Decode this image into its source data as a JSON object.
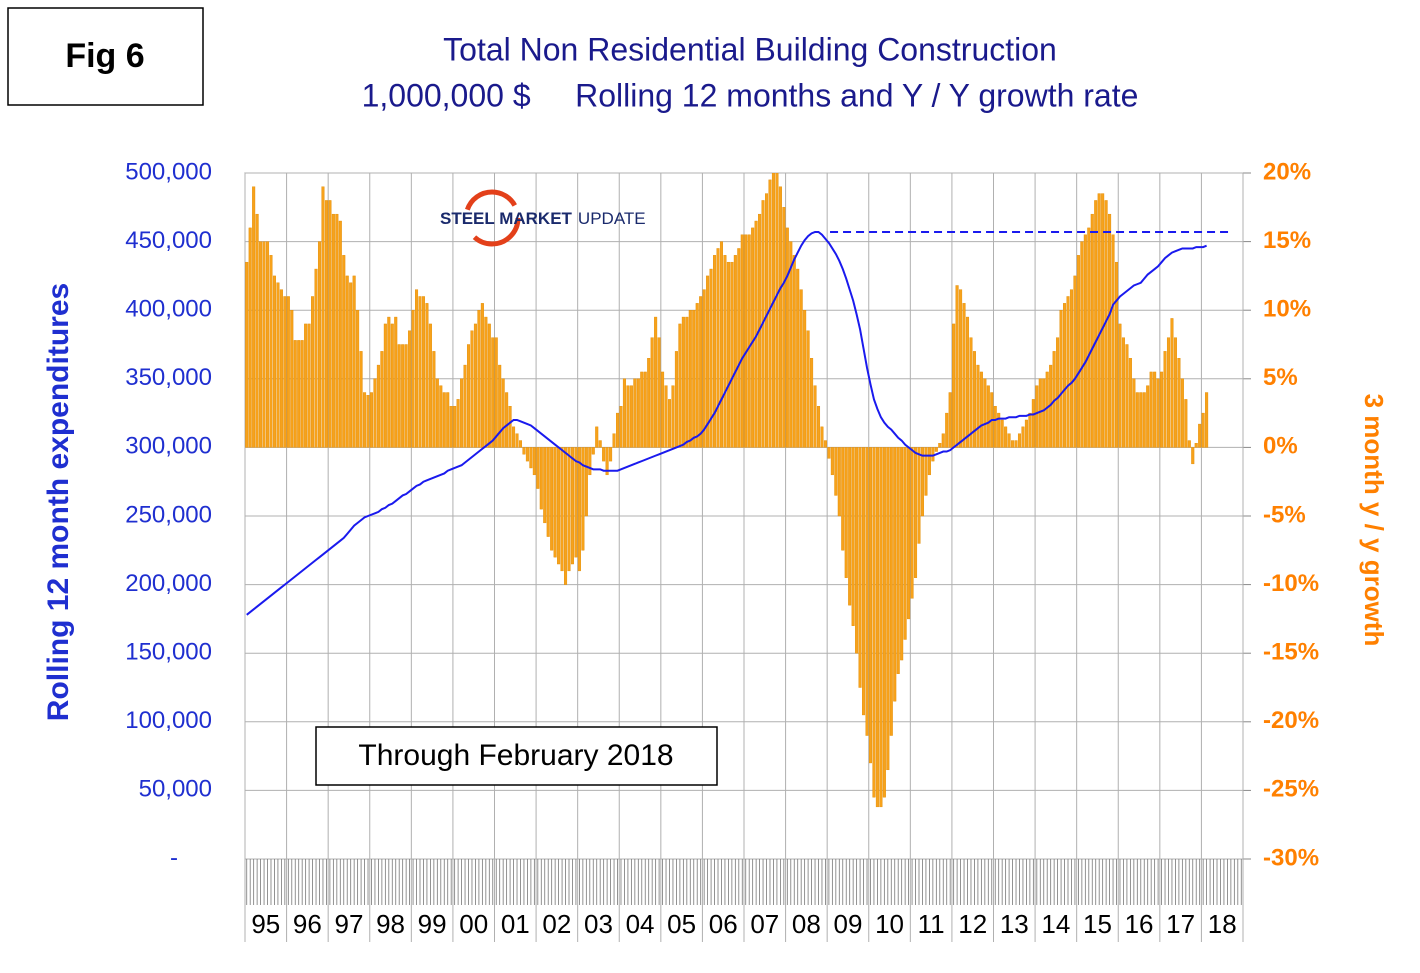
{
  "fig_label": "Fig 6",
  "logo": {
    "bold": "STEEL MARKET",
    "light": "UPDATE"
  },
  "chart_data": {
    "type": "bar_line",
    "title": [
      "Total Non Residential Building Construction",
      "1,000,000 $     Rolling 12 months and Y / Y growth rate"
    ],
    "ylabel": "Rolling 12 month expenditures",
    "y2label": "3 month y / y growth",
    "annotation": "Through February 2018",
    "categories": [
      "95",
      null,
      null,
      null,
      null,
      null,
      null,
      null,
      null,
      null,
      null,
      null,
      "96",
      null,
      null,
      null,
      null,
      null,
      null,
      null,
      null,
      null,
      null,
      null,
      "97",
      null,
      null,
      null,
      null,
      null,
      null,
      null,
      null,
      null,
      null,
      null,
      "98",
      null,
      null,
      null,
      null,
      null,
      null,
      null,
      null,
      null,
      null,
      null,
      "99",
      null,
      null,
      null,
      null,
      null,
      null,
      null,
      null,
      null,
      null,
      null,
      "00",
      null,
      null,
      null,
      null,
      null,
      null,
      null,
      null,
      null,
      null,
      null,
      "01",
      null,
      null,
      null,
      null,
      null,
      null,
      null,
      null,
      null,
      null,
      null,
      "02",
      null,
      null,
      null,
      null,
      null,
      null,
      null,
      null,
      null,
      null,
      null,
      "03",
      null,
      null,
      null,
      null,
      null,
      null,
      null,
      null,
      null,
      null,
      null,
      "04",
      null,
      null,
      null,
      null,
      null,
      null,
      null,
      null,
      null,
      null,
      null,
      "05",
      null,
      null,
      null,
      null,
      null,
      null,
      null,
      null,
      null,
      null,
      null,
      "06",
      null,
      null,
      null,
      null,
      null,
      null,
      null,
      null,
      null,
      null,
      null,
      "07",
      null,
      null,
      null,
      null,
      null,
      null,
      null,
      null,
      null,
      null,
      null,
      "08",
      null,
      null,
      null,
      null,
      null,
      null,
      null,
      null,
      null,
      null,
      null,
      "09",
      null,
      null,
      null,
      null,
      null,
      null,
      null,
      null,
      null,
      null,
      null,
      "10",
      null,
      null,
      null,
      null,
      null,
      null,
      null,
      null,
      null,
      null,
      null,
      "11",
      null,
      null,
      null,
      null,
      null,
      null,
      null,
      null,
      null,
      null,
      null,
      "12",
      null,
      null,
      null,
      null,
      null,
      null,
      null,
      null,
      null,
      null,
      null,
      "13",
      null,
      null,
      null,
      null,
      null,
      null,
      null,
      null,
      null,
      null,
      null,
      "14",
      null,
      null,
      null,
      null,
      null,
      null,
      null,
      null,
      null,
      null,
      null,
      "15",
      null,
      null,
      null,
      null,
      null,
      null,
      null,
      null,
      null,
      null,
      null,
      "16",
      null,
      null,
      null,
      null,
      null,
      null,
      null,
      null,
      null,
      null,
      null,
      "17",
      null,
      null,
      null,
      null,
      null,
      null,
      null,
      null,
      null,
      null,
      null,
      "18",
      null
    ],
    "series": [
      {
        "kind": "bar",
        "axis": "y2",
        "color": "#f7a21b",
        "values": [
          13.5,
          16,
          19,
          17,
          15,
          15,
          15,
          14,
          12.5,
          12,
          11.5,
          11,
          11,
          10,
          7.8,
          7.8,
          7.8,
          9,
          9,
          11,
          13,
          15,
          19,
          18,
          18,
          17,
          17,
          16.5,
          14,
          12.5,
          12,
          12.5,
          10,
          7,
          4,
          3.8,
          4,
          5,
          6,
          7,
          9,
          9.5,
          9,
          9.5,
          7.5,
          7.5,
          7.5,
          8.5,
          10,
          11.5,
          11,
          11,
          10.5,
          9,
          7,
          5,
          4.5,
          4,
          4,
          3,
          3,
          3.5,
          5,
          6,
          7.5,
          8.5,
          9,
          10,
          10.5,
          9.5,
          9,
          8,
          8,
          6,
          5,
          4,
          3,
          1.5,
          1,
          0.5,
          -0.5,
          -1,
          -1.5,
          -2,
          -3,
          -4.5,
          -5.5,
          -6.5,
          -7.5,
          -8,
          -8.5,
          -9,
          -10,
          -9,
          -8.5,
          -8,
          -9,
          -7.5,
          -5,
          -2,
          -0.5,
          1.5,
          0.5,
          -1,
          -2,
          -1,
          1,
          2.5,
          3,
          5,
          4.5,
          4.5,
          5,
          5,
          5.5,
          5.5,
          6.5,
          8,
          9.5,
          8,
          5.5,
          4.5,
          3.5,
          4.5,
          7,
          9,
          9.5,
          9.5,
          10,
          10,
          10.5,
          11,
          11.5,
          12.5,
          13,
          14,
          14.5,
          15,
          14,
          13.5,
          13.5,
          14,
          14.5,
          15.5,
          15.5,
          15.5,
          16,
          16.5,
          17,
          18,
          18.5,
          19.5,
          20,
          20,
          19,
          17.5,
          16,
          15,
          14,
          13,
          11.5,
          10,
          8.5,
          6.5,
          4.5,
          3,
          1.5,
          0.5,
          -0.8,
          -2,
          -3.5,
          -5,
          -7.5,
          -9.5,
          -11.5,
          -13,
          -15,
          -17.5,
          -19.5,
          -21,
          -23,
          -25.5,
          -26.2,
          -26.2,
          -25.5,
          -23.5,
          -21,
          -18.5,
          -16.5,
          -15.5,
          -14,
          -12.5,
          -11,
          -9.5,
          -7,
          -5,
          -3.5,
          -2,
          -1,
          -0.3,
          0.3,
          1,
          2.5,
          4,
          9,
          11.8,
          11.5,
          10.5,
          9.5,
          8,
          7,
          6,
          5.5,
          5,
          4.5,
          4,
          3,
          2.5,
          2,
          1.5,
          1,
          0.5,
          0.5,
          1,
          1.5,
          2,
          2.5,
          3.5,
          4.5,
          5,
          5,
          5.5,
          6,
          7,
          8,
          10,
          10.5,
          11,
          11.5,
          12.5,
          14,
          15,
          15.5,
          16,
          17,
          18,
          18.5,
          18.5,
          18,
          17,
          15.5,
          13.5,
          9,
          8,
          7.5,
          6.5,
          5,
          4,
          4,
          4,
          4.5,
          5.5,
          5.5,
          5,
          5.5,
          7,
          8,
          9.4,
          8,
          6.5,
          5,
          3.5,
          0.5,
          -1.2,
          0.3,
          1.7,
          2.5,
          4
        ]
      },
      {
        "kind": "line",
        "axis": "y",
        "color": "#1a1aee",
        "values": [
          178000,
          180000,
          182000,
          184000,
          186000,
          188000,
          190000,
          192000,
          194000,
          196000,
          198000,
          200000,
          202000,
          204000,
          206000,
          208000,
          210000,
          212000,
          214000,
          216000,
          218000,
          220000,
          222000,
          224000,
          226000,
          228000,
          230000,
          232000,
          234000,
          237000,
          240000,
          243000,
          245000,
          247000,
          249000,
          250000,
          251000,
          252000,
          253000,
          255000,
          256000,
          258000,
          259000,
          261000,
          263000,
          265000,
          266000,
          268000,
          270000,
          272000,
          273000,
          275000,
          276000,
          277000,
          278000,
          279000,
          280000,
          281000,
          283000,
          284000,
          285000,
          286000,
          287000,
          289000,
          291000,
          293000,
          295000,
          297000,
          299000,
          301000,
          303000,
          305000,
          308000,
          311000,
          314000,
          316000,
          318000,
          320000,
          320000,
          319000,
          318000,
          317000,
          316000,
          314000,
          312000,
          310000,
          308000,
          306000,
          304000,
          302000,
          300000,
          298000,
          296000,
          294000,
          292000,
          290000,
          289000,
          287000,
          286000,
          285000,
          284000,
          284000,
          284000,
          283000,
          283000,
          283000,
          283000,
          283000,
          284000,
          285000,
          286000,
          287000,
          288000,
          289000,
          290000,
          291000,
          292000,
          293000,
          294000,
          295000,
          296000,
          297000,
          298000,
          299000,
          300000,
          301000,
          302000,
          304000,
          305000,
          307000,
          308000,
          310000,
          313000,
          317000,
          321000,
          325000,
          330000,
          335000,
          340000,
          345000,
          350000,
          355000,
          360000,
          365000,
          369000,
          373000,
          377000,
          381000,
          386000,
          391000,
          396000,
          401000,
          406000,
          411000,
          416000,
          420000,
          425000,
          431000,
          437000,
          442000,
          447000,
          451000,
          454000,
          456000,
          457000,
          457000,
          455000,
          452000,
          449000,
          445000,
          441000,
          436000,
          430000,
          423000,
          415000,
          407000,
          397000,
          386000,
          372000,
          358000,
          346000,
          335000,
          328000,
          322000,
          318000,
          315000,
          313000,
          310000,
          307000,
          305000,
          302000,
          300000,
          298000,
          296000,
          295000,
          294000,
          294000,
          294000,
          294000,
          295000,
          296000,
          297000,
          297000,
          298000,
          300000,
          302000,
          304000,
          306000,
          308000,
          310000,
          312000,
          314000,
          316000,
          317000,
          318000,
          320000,
          320000,
          321000,
          321000,
          321000,
          322000,
          322000,
          322000,
          323000,
          323000,
          323000,
          324000,
          324000,
          325000,
          326000,
          327000,
          329000,
          331000,
          334000,
          336000,
          339000,
          342000,
          345000,
          347000,
          350000,
          354000,
          358000,
          362000,
          367000,
          372000,
          377000,
          382000,
          387000,
          392000,
          397000,
          404000,
          407000,
          410000,
          412000,
          414000,
          416000,
          418000,
          419000,
          420000,
          423000,
          426000,
          428000,
          430000,
          432000,
          435000,
          438000,
          440000,
          442000,
          443000,
          444000,
          445000,
          445000,
          445000,
          445000,
          446000,
          446000,
          446000,
          447000
        ]
      }
    ],
    "reference_line": 457000,
    "ylim": [
      0,
      500000
    ],
    "yticks": [
      {
        "value": 0,
        "label": "-"
      },
      {
        "value": 50000,
        "label": "50,000"
      },
      {
        "value": 100000,
        "label": "100,000"
      },
      {
        "value": 150000,
        "label": "150,000"
      },
      {
        "value": 200000,
        "label": "200,000"
      },
      {
        "value": 250000,
        "label": "250,000"
      },
      {
        "value": 300000,
        "label": "300,000"
      },
      {
        "value": 350000,
        "label": "350,000"
      },
      {
        "value": 400000,
        "label": "400,000"
      },
      {
        "value": 450000,
        "label": "450,000"
      },
      {
        "value": 500000,
        "label": "500,000"
      }
    ],
    "y2lim": [
      -30,
      20
    ],
    "y2ticks": [
      {
        "value": -30,
        "label": "-30%"
      },
      {
        "value": -25,
        "label": "-25%"
      },
      {
        "value": -20,
        "label": "-20%"
      },
      {
        "value": -15,
        "label": "-15%"
      },
      {
        "value": -10,
        "label": "-10%"
      },
      {
        "value": -5,
        "label": "-5%"
      },
      {
        "value": 0,
        "label": "0%"
      },
      {
        "value": 5,
        "label": "5%"
      },
      {
        "value": 10,
        "label": "10%"
      },
      {
        "value": 15,
        "label": "15%"
      },
      {
        "value": 20,
        "label": "20%"
      }
    ],
    "grid": true
  }
}
